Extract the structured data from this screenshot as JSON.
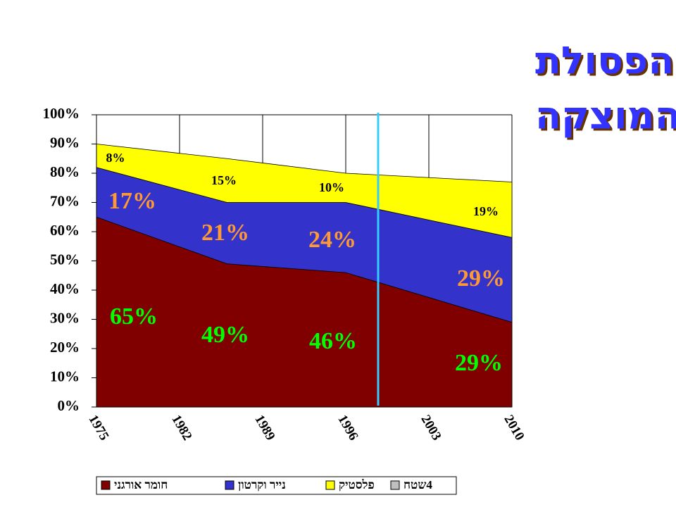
{
  "chart_data": {
    "type": "stacked-area",
    "title": [
      "הרכב הפסולת",
      "המוצקה"
    ],
    "x": [
      1975,
      1986,
      1996,
      2010
    ],
    "xlim": [
      1975,
      2010
    ],
    "xticks": [
      1975,
      1982,
      1989,
      1996,
      2003,
      2010
    ],
    "ylim": [
      0,
      100
    ],
    "yticks": [
      {
        "value": 0,
        "label": "0%"
      },
      {
        "value": 10,
        "label": "10%"
      },
      {
        "value": 20,
        "label": "20%"
      },
      {
        "value": 30,
        "label": "30%"
      },
      {
        "value": 40,
        "label": "40%"
      },
      {
        "value": 50,
        "label": "50%"
      },
      {
        "value": 60,
        "label": "60%"
      },
      {
        "value": 70,
        "label": "70%"
      },
      {
        "value": 80,
        "label": "80%"
      },
      {
        "value": 90,
        "label": "90%"
      },
      {
        "value": 100,
        "label": "100%"
      }
    ],
    "grid": "x",
    "series": [
      {
        "name": "ינגרוא רמוח",
        "color": "#800000",
        "values": [
          65,
          49,
          46,
          29
        ],
        "value_labels": [
          "65%",
          "49%",
          "46%",
          "29%"
        ],
        "label_color": "#00ff00"
      },
      {
        "name": "ןוטרקו ריינ",
        "color": "#3333cc",
        "values": [
          17,
          21,
          24,
          29
        ],
        "value_labels": [
          "17%",
          "21%",
          "24%",
          "29%"
        ],
        "label_color": "#ff9933"
      },
      {
        "name": "קיטסלפ",
        "color": "#ffff00",
        "values": [
          8,
          15,
          10,
          19
        ],
        "value_labels": [
          "8%",
          "15%",
          "10%",
          "19%"
        ],
        "label_color": "#000000"
      },
      {
        "name": "חטש4",
        "color": "#c0c0c0",
        "values": [
          null,
          null,
          null,
          null
        ]
      }
    ]
  }
}
